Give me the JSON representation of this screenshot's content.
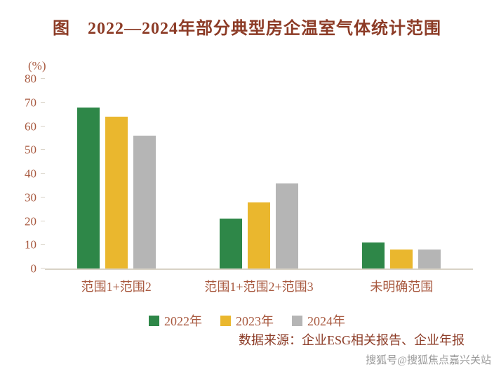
{
  "title": "图　2022—2024年部分典型房企温室气体统计范围",
  "chart_data": {
    "type": "bar",
    "title": "图 2022—2024年部分典型房企温室气体统计范围",
    "unit_label": "(%)",
    "ylabel": "(%)",
    "xlabel": "",
    "categories": [
      "范围1+范围2",
      "范围1+范围2+范围3",
      "未明确范围"
    ],
    "series": [
      {
        "name": "2022年",
        "color": "#2e8748",
        "values": [
          68,
          21,
          11
        ]
      },
      {
        "name": "2023年",
        "color": "#eab72e",
        "values": [
          64,
          28,
          8
        ]
      },
      {
        "name": "2024年",
        "color": "#b5b5b5",
        "values": [
          56,
          36,
          8
        ]
      }
    ],
    "ylim": [
      0,
      80
    ],
    "yticks": [
      0,
      10,
      20,
      30,
      40,
      50,
      60,
      70,
      80
    ],
    "grid": false,
    "legend_position": "bottom"
  },
  "source_text": "数据来源：企业ESG相关报告、企业年报",
  "watermark": "搜狐号@搜狐焦点嘉兴关站",
  "colors": {
    "title": "#8c3b26",
    "axis_text": "#a8593f",
    "axis_line": "#d8d2c6",
    "watermark": "#9a9a9a"
  }
}
